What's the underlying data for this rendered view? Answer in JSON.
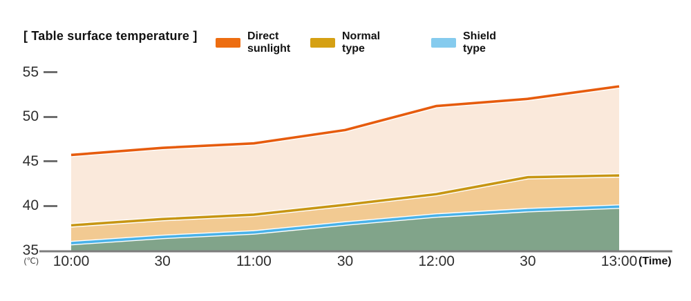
{
  "title": "[ Table surface temperature ]",
  "legend": [
    {
      "label": "Direct sunlight",
      "color": "#ed6d11"
    },
    {
      "label": "Normal type",
      "color": "#d5a013"
    },
    {
      "label": "Shield type",
      "color": "#85cbee"
    }
  ],
  "axis": {
    "y_unit": "(℃)",
    "x_unit": "(Time)"
  },
  "chart_data": {
    "type": "area",
    "title": "[ Table surface temperature ]",
    "x": [
      "10:00",
      "30",
      "11:00",
      "30",
      "12:00",
      "30",
      "13:00"
    ],
    "series": [
      {
        "name": "Direct sunlight",
        "values": [
          45.7,
          46.5,
          47.0,
          48.5,
          51.2,
          52.0,
          53.4
        ],
        "line_color": "#e65c0e",
        "fill_color": "#fae9db"
      },
      {
        "name": "Normal type",
        "values": [
          37.8,
          38.5,
          39.0,
          40.1,
          41.3,
          43.2,
          43.4
        ],
        "line_color": "#c79614",
        "fill_color": "#f2ca92"
      },
      {
        "name": "Shield type",
        "values": [
          35.8,
          36.5,
          37.0,
          38.0,
          38.9,
          39.5,
          39.9
        ],
        "line_color": "#49b2e9",
        "fill_color": "#81a48a"
      }
    ],
    "yticks": [
      55,
      50,
      45,
      40,
      35
    ],
    "ylim": [
      35,
      55
    ],
    "xlabel": "(Time)",
    "ylabel": "(℃)",
    "legend_position": "top",
    "grid": false
  }
}
